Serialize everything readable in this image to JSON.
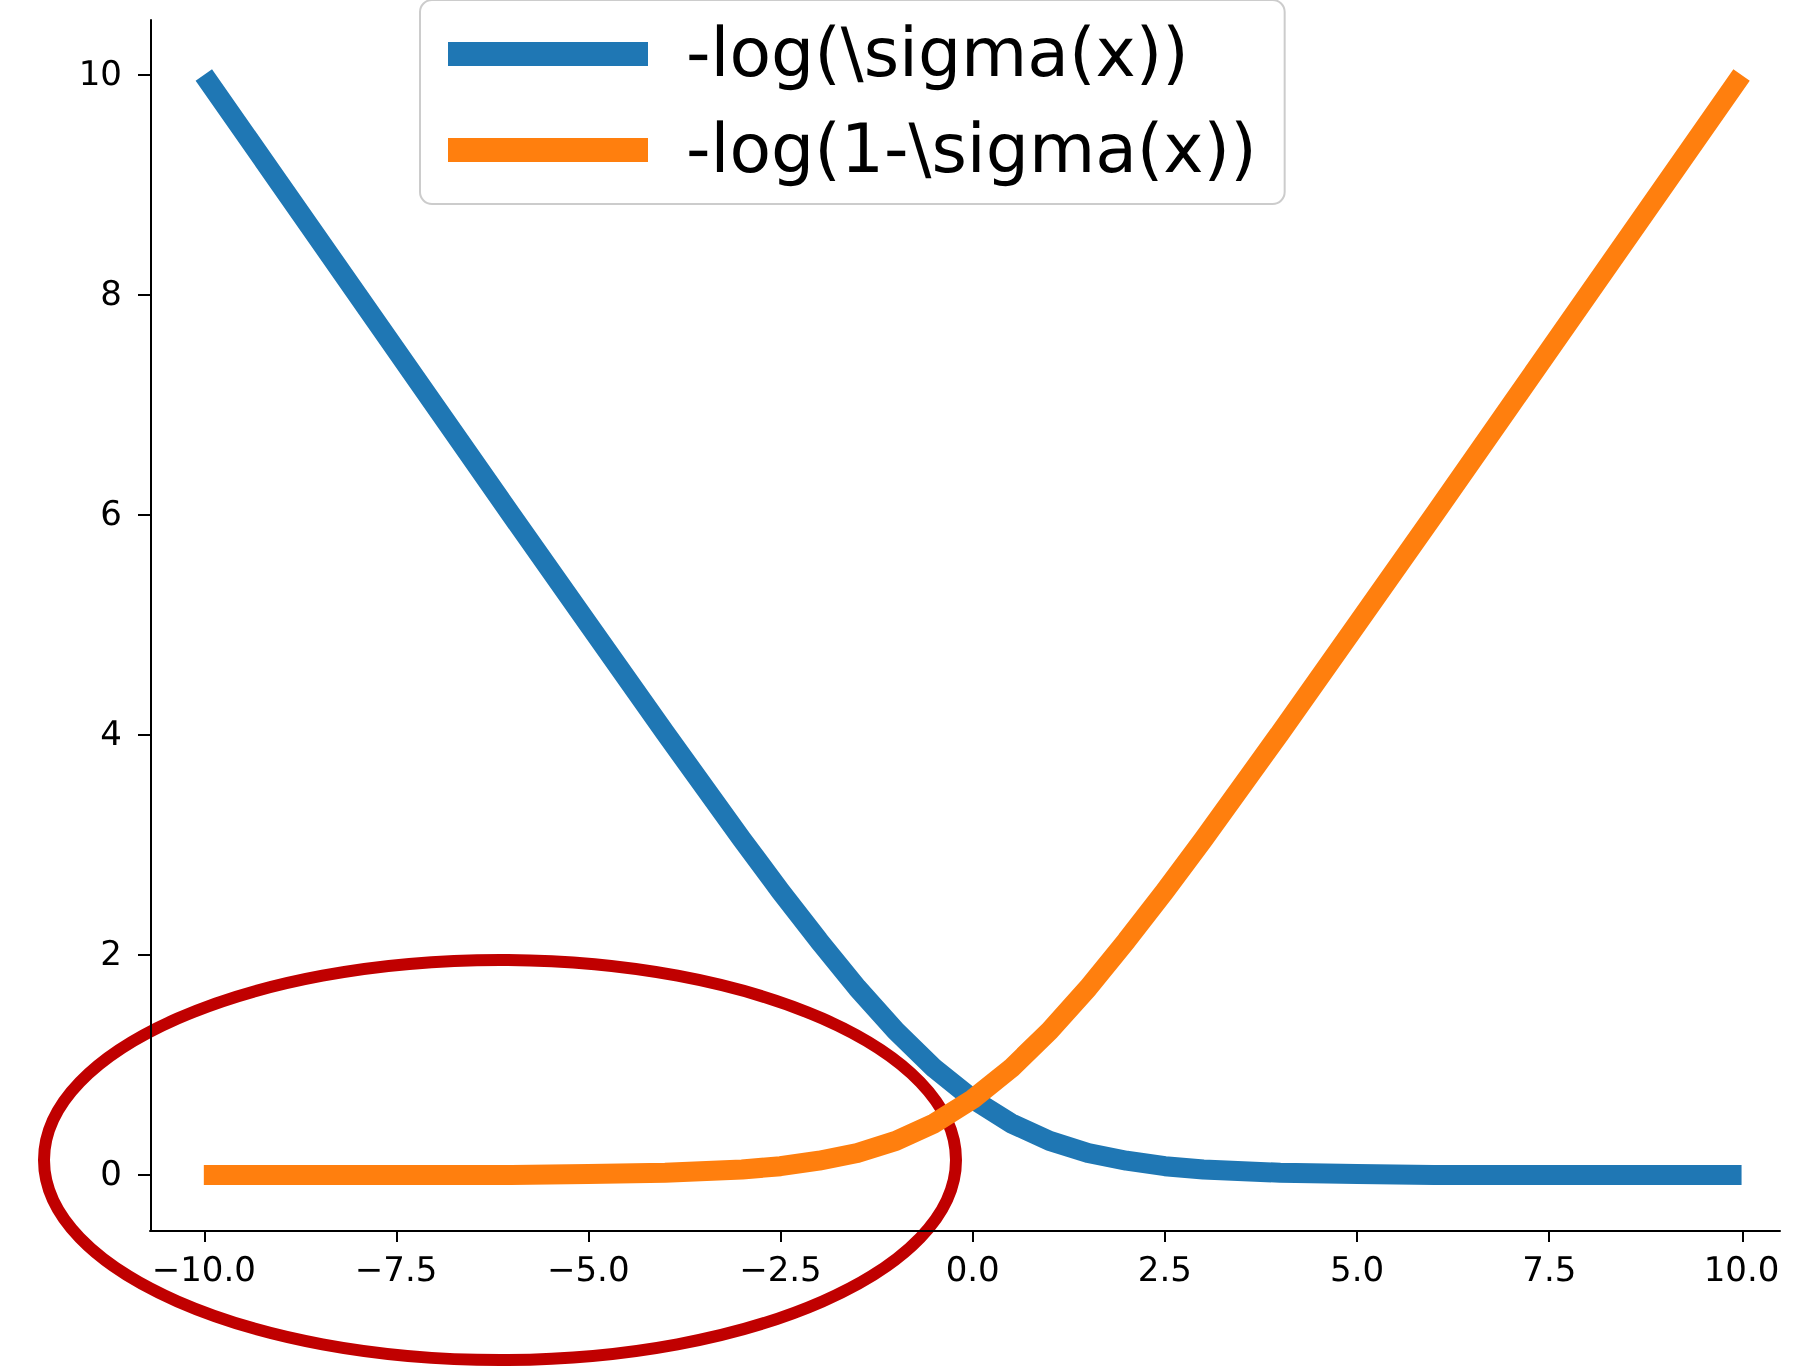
{
  "chart_data": {
    "type": "line",
    "x": [
      -10,
      -9,
      -8,
      -7,
      -6,
      -5,
      -4,
      -3,
      -2.5,
      -2,
      -1.5,
      -1,
      -0.5,
      0,
      0.5,
      1,
      1.5,
      2,
      2.5,
      3,
      4,
      5,
      6,
      7,
      8,
      9,
      10
    ],
    "series": [
      {
        "name": "-log(\\sigma(x))",
        "color": "#1f77b4",
        "values": [
          10,
          9,
          8,
          7,
          6,
          5.01,
          4.02,
          3.05,
          2.58,
          2.13,
          1.7,
          1.31,
          0.97,
          0.69,
          0.47,
          0.31,
          0.2,
          0.13,
          0.08,
          0.05,
          0.02,
          0.01,
          0,
          0,
          0,
          0,
          0
        ]
      },
      {
        "name": "-log(1-\\sigma(x))",
        "color": "#ff7f0e",
        "values": [
          0,
          0,
          0,
          0,
          0,
          0.01,
          0.02,
          0.05,
          0.08,
          0.13,
          0.2,
          0.31,
          0.47,
          0.69,
          0.97,
          1.31,
          1.7,
          2.13,
          2.58,
          3.05,
          4.02,
          5.01,
          6,
          7,
          8,
          9,
          10
        ]
      }
    ],
    "xlim": [
      -10.7,
      10.5
    ],
    "ylim": [
      -0.5,
      10.5
    ],
    "xticks": [
      {
        "value": -10,
        "label": "−10.0"
      },
      {
        "value": -7.5,
        "label": "−7.5"
      },
      {
        "value": -5,
        "label": "−5.0"
      },
      {
        "value": -2.5,
        "label": "−2.5"
      },
      {
        "value": 0,
        "label": "0.0"
      },
      {
        "value": 2.5,
        "label": "2.5"
      },
      {
        "value": 5,
        "label": "5.0"
      },
      {
        "value": 7.5,
        "label": "7.5"
      },
      {
        "value": 10,
        "label": "10.0"
      }
    ],
    "yticks": [
      0,
      2,
      4,
      6,
      8,
      10
    ],
    "grid": false,
    "legend": "top",
    "marker": "none",
    "line_style": "solid"
  }
}
